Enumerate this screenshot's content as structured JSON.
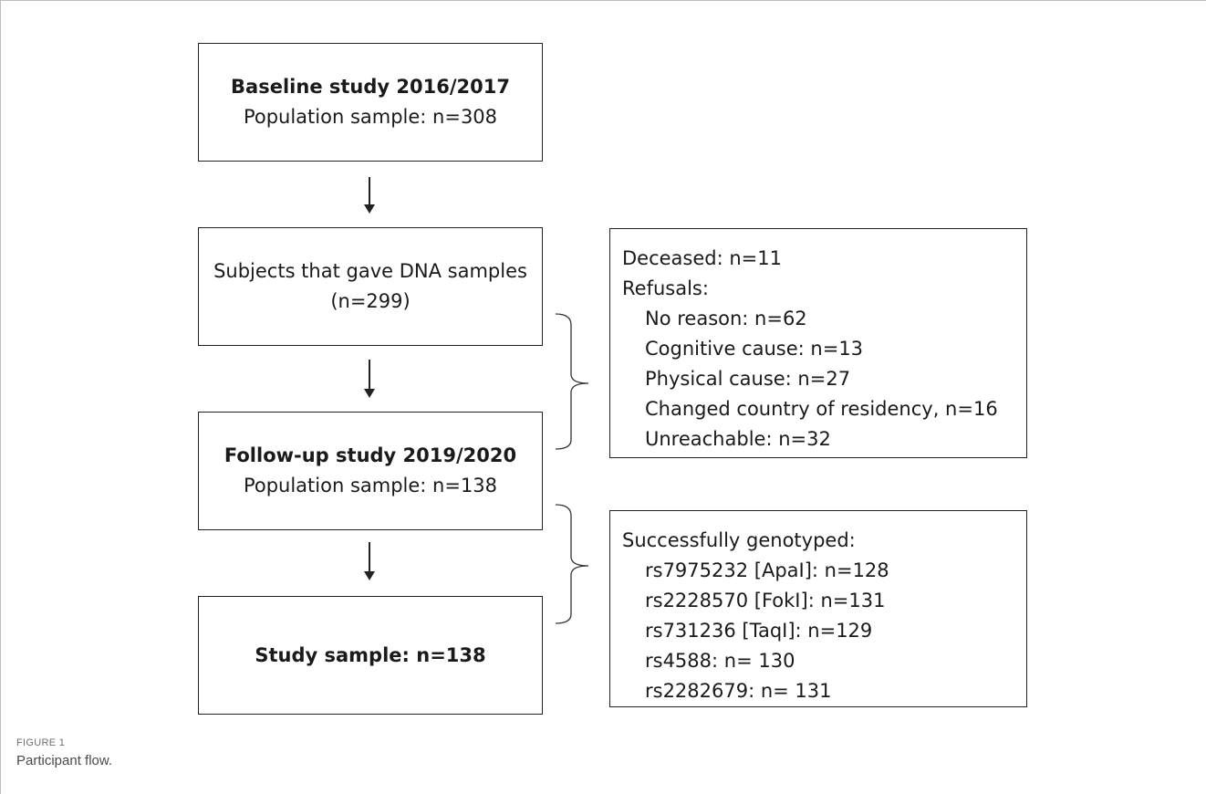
{
  "flow": {
    "baseline": {
      "title": "Baseline study 2016/2017",
      "subtitle": "Population sample: n=308"
    },
    "dna": {
      "line1": "Subjects that gave DNA samples",
      "line2": "(n=299)"
    },
    "followup": {
      "title": "Follow-up study 2019/2020",
      "subtitle": "Population sample: n=138"
    },
    "study": {
      "title": "Study sample: n=138"
    }
  },
  "exclusions": {
    "lines": [
      "Deceased: n=11",
      "Refusals:",
      "No reason: n=62",
      "Cognitive cause: n=13",
      "Physical cause: n=27",
      "Changed country of residency, n=16",
      "Unreachable: n=32"
    ]
  },
  "genotyped": {
    "header": "Successfully genotyped:",
    "items": [
      "rs7975232 [ApaI]: n=128",
      "rs2228570 [FokI]: n=131",
      "rs731236 [TaqI]: n=129",
      "rs4588: n= 130",
      "rs2282679: n= 131"
    ]
  },
  "figure": {
    "label": "FIGURE 1",
    "caption": "Participant flow."
  }
}
